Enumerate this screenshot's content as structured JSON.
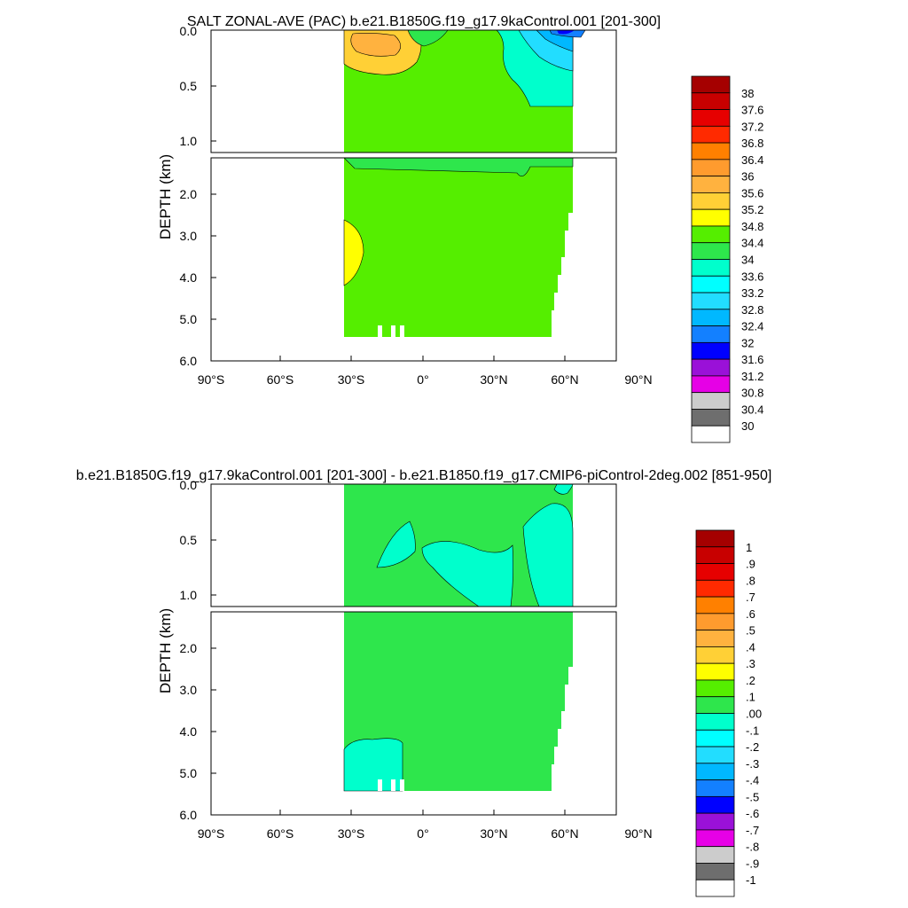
{
  "chart_data": [
    {
      "type": "heatmap",
      "title": "SALT ZONAL-AVE (PAC) b.e21.B1850G.f19_g17.9kaControl.001 [201-300]",
      "xlabel": "",
      "ylabel": "DEPTH (km)",
      "x_ticks": [
        "90°S",
        "60°S",
        "30°S",
        "0°",
        "30°N",
        "60°N",
        "90°N"
      ],
      "y_ticks_upper": [
        "0.0",
        "0.5",
        "1.0"
      ],
      "y_ticks_lower": [
        "2.0",
        "3.0",
        "4.0",
        "5.0",
        "6.0"
      ],
      "xlim": [
        -90,
        90
      ],
      "ylim_upper_km": [
        0,
        1.1
      ],
      "ylim_lower_km": [
        1.1,
        6.0
      ],
      "data_lat_range": [
        -35,
        62
      ],
      "colorbar_labels": [
        "38",
        "37.6",
        "37.2",
        "36.8",
        "36.4",
        "36",
        "35.6",
        "35.2",
        "34.8",
        "34.4",
        "34",
        "33.6",
        "33.2",
        "32.8",
        "32.4",
        "32",
        "31.6",
        "31.2",
        "30.8",
        "30.4",
        "30"
      ],
      "colorbar_colors": [
        "#a50000",
        "#c80000",
        "#e60000",
        "#ff2a00",
        "#ff8000",
        "#ff9b2e",
        "#ffb23f",
        "#ffd036",
        "#ffff00",
        "#55ee00",
        "#2ee64c",
        "#00ffcc",
        "#00ffff",
        "#22ddff",
        "#00b8ff",
        "#1380ff",
        "#0000ff",
        "#9a11d8",
        "#e600e6",
        "#cccccc",
        "#6e6e6e",
        "#ffffff"
      ],
      "dominant_range": [
        "34.4",
        "34.8"
      ]
    },
    {
      "type": "heatmap",
      "title": "b.e21.B1850G.f19_g17.9kaControl.001 [201-300] - b.e21.B1850.f19_g17.CMIP6-piControl-2deg.002 [851-950]",
      "xlabel": "",
      "ylabel": "DEPTH (km)",
      "x_ticks": [
        "90°S",
        "60°S",
        "30°S",
        "0°",
        "30°N",
        "60°N",
        "90°N"
      ],
      "y_ticks_upper": [
        "0.0",
        "0.5",
        "1.0"
      ],
      "y_ticks_lower": [
        "2.0",
        "3.0",
        "4.0",
        "5.0",
        "6.0"
      ],
      "xlim": [
        -90,
        90
      ],
      "ylim_upper_km": [
        0,
        1.1
      ],
      "ylim_lower_km": [
        1.1,
        6.0
      ],
      "data_lat_range": [
        -35,
        62
      ],
      "colorbar_labels": [
        "1",
        ".9",
        ".8",
        ".7",
        ".6",
        ".5",
        ".4",
        ".3",
        ".2",
        ".1",
        ".00",
        "-.1",
        "-.2",
        "-.3",
        "-.4",
        "-.5",
        "-.6",
        "-.7",
        "-.8",
        "-.9",
        "-1"
      ],
      "colorbar_colors": [
        "#a50000",
        "#c80000",
        "#e60000",
        "#ff2a00",
        "#ff8000",
        "#ff9b2e",
        "#ffb23f",
        "#ffd036",
        "#ffff00",
        "#55ee00",
        "#2ee64c",
        "#00ffcc",
        "#00ffff",
        "#22ddff",
        "#00b8ff",
        "#1380ff",
        "#0000ff",
        "#9a11d8",
        "#e600e6",
        "#cccccc",
        "#6e6e6e",
        "#ffffff"
      ],
      "dominant_range": [
        ".00",
        ".1"
      ]
    }
  ]
}
